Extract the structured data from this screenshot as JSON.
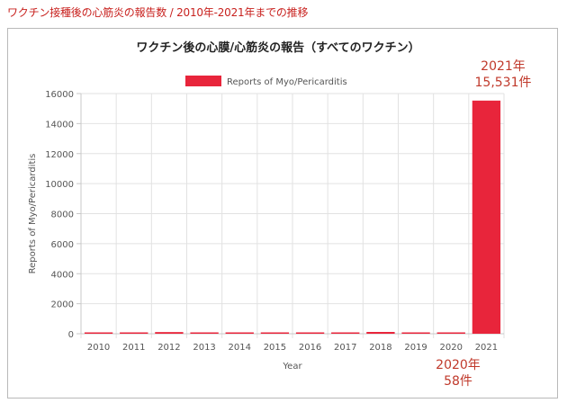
{
  "heading": "ワクチン接種後の心筋炎の報告数 / 2010年-2021年までの推移",
  "chart_data": {
    "type": "bar",
    "title": "ワクチン後の心膜/心筋炎の報告（すべてのワクチン）",
    "xlabel": "Year",
    "ylabel": "Reports of Myo/Pericarditis",
    "legend": {
      "label": "Reports of Myo/Pericarditis",
      "placement": "top"
    },
    "categories": [
      "2010",
      "2011",
      "2012",
      "2013",
      "2014",
      "2015",
      "2016",
      "2017",
      "2018",
      "2019",
      "2020",
      "2021"
    ],
    "values": [
      70,
      75,
      110,
      85,
      65,
      40,
      35,
      75,
      120,
      70,
      58,
      15531
    ],
    "ylim": [
      0,
      16000
    ],
    "yticks": [
      "0",
      "2000",
      "4000",
      "6000",
      "8000",
      "10000",
      "12000",
      "14000",
      "16000"
    ],
    "grid": true,
    "bar_color": "#e8253b",
    "annotations": [
      {
        "line1": "2021年",
        "line2": "15,531件"
      },
      {
        "line1": "2020年",
        "line2": "58件"
      }
    ]
  }
}
